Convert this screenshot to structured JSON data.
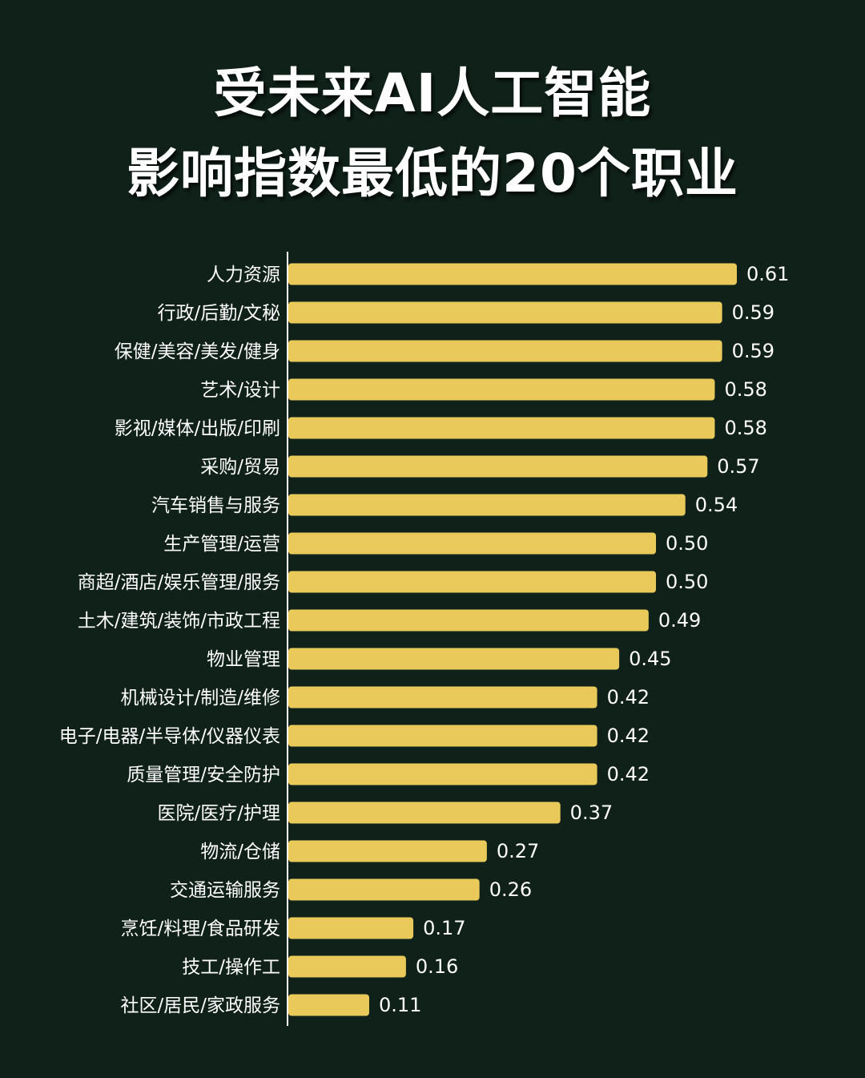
{
  "title_line1": "受未来AI人工智能",
  "title_line2": "影响指数最低的20个职业",
  "colors": {
    "background": "#0f2119",
    "bar": "#e8c95a",
    "text": "#ffffff",
    "axis": "#ffffff"
  },
  "chart_data": {
    "type": "bar",
    "orientation": "horizontal",
    "title": "受未来AI人工智能影响指数最低的20个职业",
    "categories": [
      "人力资源",
      "行政/后勤/文秘",
      "保健/美容/美发/健身",
      "艺术/设计",
      "影视/媒体/出版/印刷",
      "采购/贸易",
      "汽车销售与服务",
      "生产管理/运营",
      "商超/酒店/娱乐管理/服务",
      "土木/建筑/装饰/市政工程",
      "物业管理",
      "机械设计/制造/维修",
      "电子/电器/半导体/仪器仪表",
      "质量管理/安全防护",
      "医院/医疗/护理",
      "物流/仓储",
      "交通运输服务",
      "烹饪/料理/食品研发",
      "技工/操作工",
      "社区/居民/家政服务"
    ],
    "values": [
      0.61,
      0.59,
      0.59,
      0.58,
      0.58,
      0.57,
      0.54,
      0.5,
      0.5,
      0.49,
      0.45,
      0.42,
      0.42,
      0.42,
      0.37,
      0.27,
      0.26,
      0.17,
      0.16,
      0.11
    ],
    "value_labels": [
      "0.61",
      "0.59",
      "0.59",
      "0.58",
      "0.58",
      "0.57",
      "0.54",
      "0.50",
      "0.50",
      "0.49",
      "0.45",
      "0.42",
      "0.42",
      "0.42",
      "0.37",
      "0.27",
      "0.26",
      "0.17",
      "0.16",
      "0.11"
    ],
    "xlim": [
      0,
      0.61
    ],
    "grid": false,
    "legend": "none"
  }
}
